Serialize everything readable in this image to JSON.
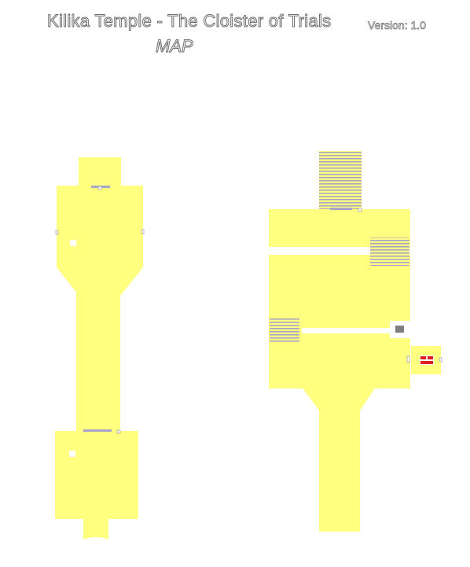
{
  "map": {
    "title": "Kilika Temple - The Cloister of Trials",
    "subtitle": "MAP",
    "version": "Version: 1.0"
  },
  "colors": {
    "floor": "#ffff80",
    "stairs": "#a6a6c8",
    "door": "#ffffff",
    "pedestal": "#808080",
    "chest": "#e02020"
  }
}
